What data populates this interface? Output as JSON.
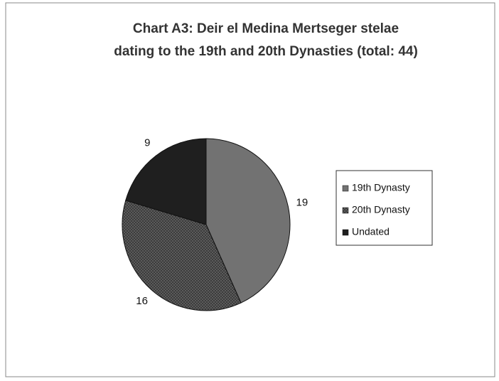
{
  "chart_data": {
    "type": "pie",
    "title": [
      "Chart A3: Deir el Medina Mertseger stelae",
      "dating to the 19th and 20th Dynasties (total: 44)"
    ],
    "categories": [
      "19th Dynasty",
      "20th Dynasty",
      "Undated"
    ],
    "values": [
      19,
      16,
      9
    ],
    "colors": [
      "#727272",
      "#3c3c3c",
      "#1f1f1f"
    ],
    "legend": "right"
  }
}
